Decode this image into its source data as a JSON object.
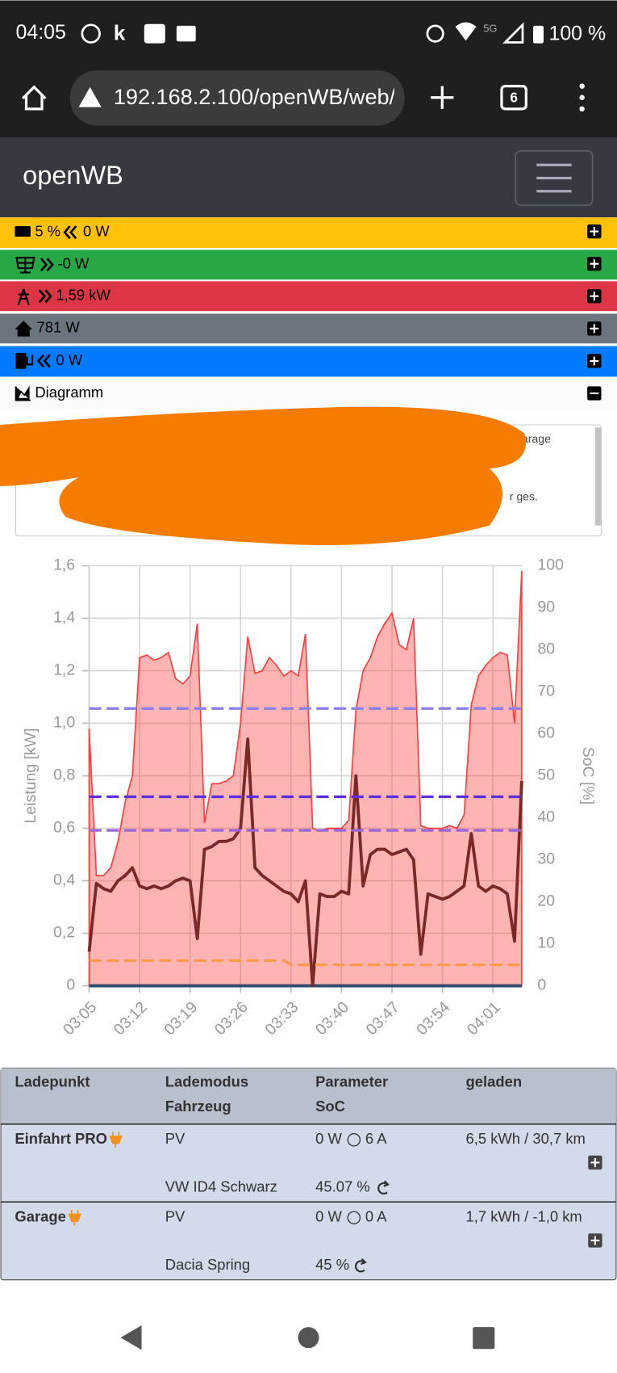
{
  "status_bar": {
    "time": "04:05",
    "network": "5G",
    "battery": "100 %"
  },
  "browser": {
    "url": "192.168.2.100/openWB/web/",
    "tabs": "6"
  },
  "navbar": {
    "brand": "openWB"
  },
  "status_rows": [
    {
      "text": "5 %",
      "text2": "0 W"
    },
    {
      "text": "-0 W"
    },
    {
      "text": "1,59 kW"
    },
    {
      "text": "781 W"
    },
    {
      "text": "0 W"
    },
    {
      "text": "Diagramm"
    }
  ],
  "legend_fragments": [
    "arage",
    "r ges."
  ],
  "chart_data": {
    "type": "line",
    "ylabel": "Leistung [kW]",
    "y2label": "SoC [%]",
    "categories": [
      "03:05",
      null,
      null,
      null,
      null,
      null,
      null,
      "03:12",
      null,
      null,
      null,
      null,
      null,
      null,
      "03:19",
      null,
      null,
      null,
      null,
      null,
      null,
      "03:26",
      null,
      null,
      null,
      null,
      null,
      null,
      "03:33",
      null,
      null,
      null,
      null,
      null,
      null,
      "03:40",
      null,
      null,
      null,
      null,
      null,
      null,
      "03:47",
      null,
      null,
      null,
      null,
      null,
      null,
      "03:54",
      null,
      null,
      null,
      null,
      null,
      null,
      "04:01",
      null,
      null,
      null,
      null
    ],
    "ylim": [
      0,
      1.6
    ],
    "yticks": [
      0,
      {
        "value": 0.2,
        "label": "0,2"
      },
      {
        "value": 0.4,
        "label": "0,4"
      },
      {
        "value": 0.6,
        "label": "0,6"
      },
      {
        "value": 0.8,
        "label": "0,8"
      },
      {
        "value": 1.0,
        "label": "1,0"
      },
      {
        "value": 1.2,
        "label": "1,2"
      },
      {
        "value": 1.4,
        "label": "1,4"
      },
      {
        "value": 1.6,
        "label": "1,6"
      }
    ],
    "y2lim": [
      0,
      100
    ],
    "y2ticks": [
      0,
      10,
      20,
      30,
      40,
      50,
      60,
      70,
      80,
      90,
      100
    ],
    "grid": true,
    "series": [
      {
        "color": "#ff3b3b",
        "area": true,
        "values": [
          0.98,
          0.42,
          0.42,
          0.45,
          0.55,
          0.7,
          0.8,
          1.25,
          1.26,
          1.24,
          1.25,
          1.27,
          1.17,
          1.15,
          1.18,
          1.38,
          0.62,
          0.77,
          0.77,
          0.78,
          0.8,
          1.0,
          1.33,
          1.19,
          1.2,
          1.25,
          1.22,
          1.18,
          1.2,
          1.18,
          1.34,
          0.6,
          0.59,
          0.6,
          0.6,
          0.6,
          0.63,
          1.05,
          1.2,
          1.25,
          1.33,
          1.38,
          1.42,
          1.3,
          1.28,
          1.4,
          0.61,
          0.6,
          0.6,
          0.6,
          0.61,
          0.6,
          0.65,
          1.07,
          1.18,
          1.22,
          1.25,
          1.27,
          1.26,
          1.0,
          1.58
        ]
      },
      {
        "color": "#2f4a6a",
        "values": [
          0,
          0,
          0,
          0,
          0,
          0,
          0,
          0,
          0,
          0,
          0,
          0,
          0,
          0,
          0,
          0,
          0,
          0,
          0,
          0,
          0,
          0,
          0,
          0,
          0,
          0,
          0,
          0,
          0,
          0,
          0,
          0,
          0,
          0,
          0,
          0,
          0,
          0,
          0,
          0,
          0,
          0,
          0,
          0,
          0,
          0,
          0,
          0,
          0,
          0,
          0,
          0,
          0,
          0,
          0,
          0,
          0,
          0,
          0,
          0,
          0
        ]
      },
      {
        "color": "#7a2828",
        "values": [
          0.13,
          0.39,
          0.37,
          0.36,
          0.4,
          0.42,
          0.45,
          0.38,
          0.37,
          0.38,
          0.37,
          0.38,
          0.4,
          0.41,
          0.4,
          0.18,
          0.52,
          0.53,
          0.55,
          0.55,
          0.56,
          0.6,
          0.94,
          0.45,
          0.42,
          0.4,
          0.38,
          0.36,
          0.35,
          0.32,
          0.4,
          0.0,
          0.35,
          0.34,
          0.34,
          0.36,
          0.35,
          0.8,
          0.38,
          0.5,
          0.52,
          0.52,
          0.5,
          0.51,
          0.52,
          0.48,
          0.12,
          0.35,
          0.34,
          0.33,
          0.34,
          0.36,
          0.38,
          0.58,
          0.38,
          0.36,
          0.38,
          0.37,
          0.35,
          0.17,
          0.78
        ]
      },
      {
        "color": "#8a7ef0",
        "axis": "y2",
        "dashed": true,
        "values": [
          66,
          66,
          66,
          66,
          66,
          66,
          66,
          66,
          66,
          66,
          66,
          66,
          66,
          66,
          66,
          66,
          66,
          66,
          66,
          66,
          66,
          66,
          66,
          66,
          66,
          66,
          66,
          66,
          66,
          66,
          66,
          66,
          66,
          66,
          66,
          66,
          66,
          66,
          66,
          66,
          66,
          66,
          66,
          66,
          66,
          66,
          66,
          66,
          66,
          66,
          66,
          66,
          66,
          66,
          66,
          66,
          66,
          66,
          66,
          66,
          66
        ]
      },
      {
        "color": "#5a2ee0",
        "axis": "y2",
        "dashed": true,
        "values": [
          45,
          45,
          45,
          45,
          45,
          45,
          45,
          45,
          45,
          45,
          45,
          45,
          45,
          45,
          45,
          45,
          45,
          45,
          45,
          45,
          45,
          45,
          45,
          45,
          45,
          45,
          45,
          45,
          45,
          45,
          45,
          45,
          45,
          45,
          45,
          45,
          45,
          45,
          45,
          45,
          45,
          45,
          45,
          45,
          45,
          45,
          45,
          45,
          45,
          45,
          45,
          45,
          45,
          45,
          45,
          45,
          45,
          45,
          45,
          45,
          45
        ]
      },
      {
        "color": "#9a66d8",
        "axis": "y2",
        "dashed": true,
        "values": [
          37,
          37,
          37,
          37,
          37,
          37,
          37,
          37,
          37,
          37,
          37,
          37,
          37,
          37,
          37,
          37,
          37,
          37,
          37,
          37,
          37,
          37,
          37,
          37,
          37,
          37,
          37,
          37,
          37,
          37,
          37,
          37,
          37,
          37,
          37,
          37,
          37,
          37,
          37,
          37,
          37,
          37,
          37,
          37,
          37,
          37,
          37,
          37,
          37,
          37,
          37,
          37,
          37,
          37,
          37,
          37,
          37,
          37,
          37,
          37,
          37
        ]
      },
      {
        "color": "#ff9a4a",
        "axis": "y2",
        "dashed": true,
        "values": [
          6,
          6,
          6,
          6,
          6,
          6,
          6,
          6,
          6,
          6,
          6,
          6,
          6,
          6,
          6,
          6,
          6,
          6,
          6,
          6,
          6,
          6,
          6,
          6,
          6,
          6,
          6,
          6,
          5,
          5,
          5,
          5,
          5,
          5,
          5,
          5,
          5,
          5,
          5,
          5,
          5,
          5,
          5,
          5,
          5,
          5,
          5,
          5,
          5,
          5,
          5,
          5,
          5,
          5,
          5,
          5,
          5,
          5,
          5,
          5,
          5
        ]
      }
    ]
  },
  "table": {
    "headers": [
      [
        "Ladepunkt"
      ],
      [
        "Lademodus",
        "Fahrzeug"
      ],
      [
        "Parameter",
        "SoC"
      ],
      [
        "geladen"
      ]
    ],
    "rows": [
      {
        "name": "Einfahrt PRO",
        "mode": "PV",
        "power": "0 W",
        "current": "6 A",
        "charged": "6,5 kWh / 30,7 km",
        "vehicle": "VW ID4 Schwarz",
        "soc": "45.07 %"
      },
      {
        "name": "Garage",
        "mode": "PV",
        "power": "0 W",
        "current": "0 A",
        "charged": "1,7 kWh / -1,0 km",
        "vehicle": "Dacia Spring",
        "soc": "45 %"
      }
    ]
  }
}
